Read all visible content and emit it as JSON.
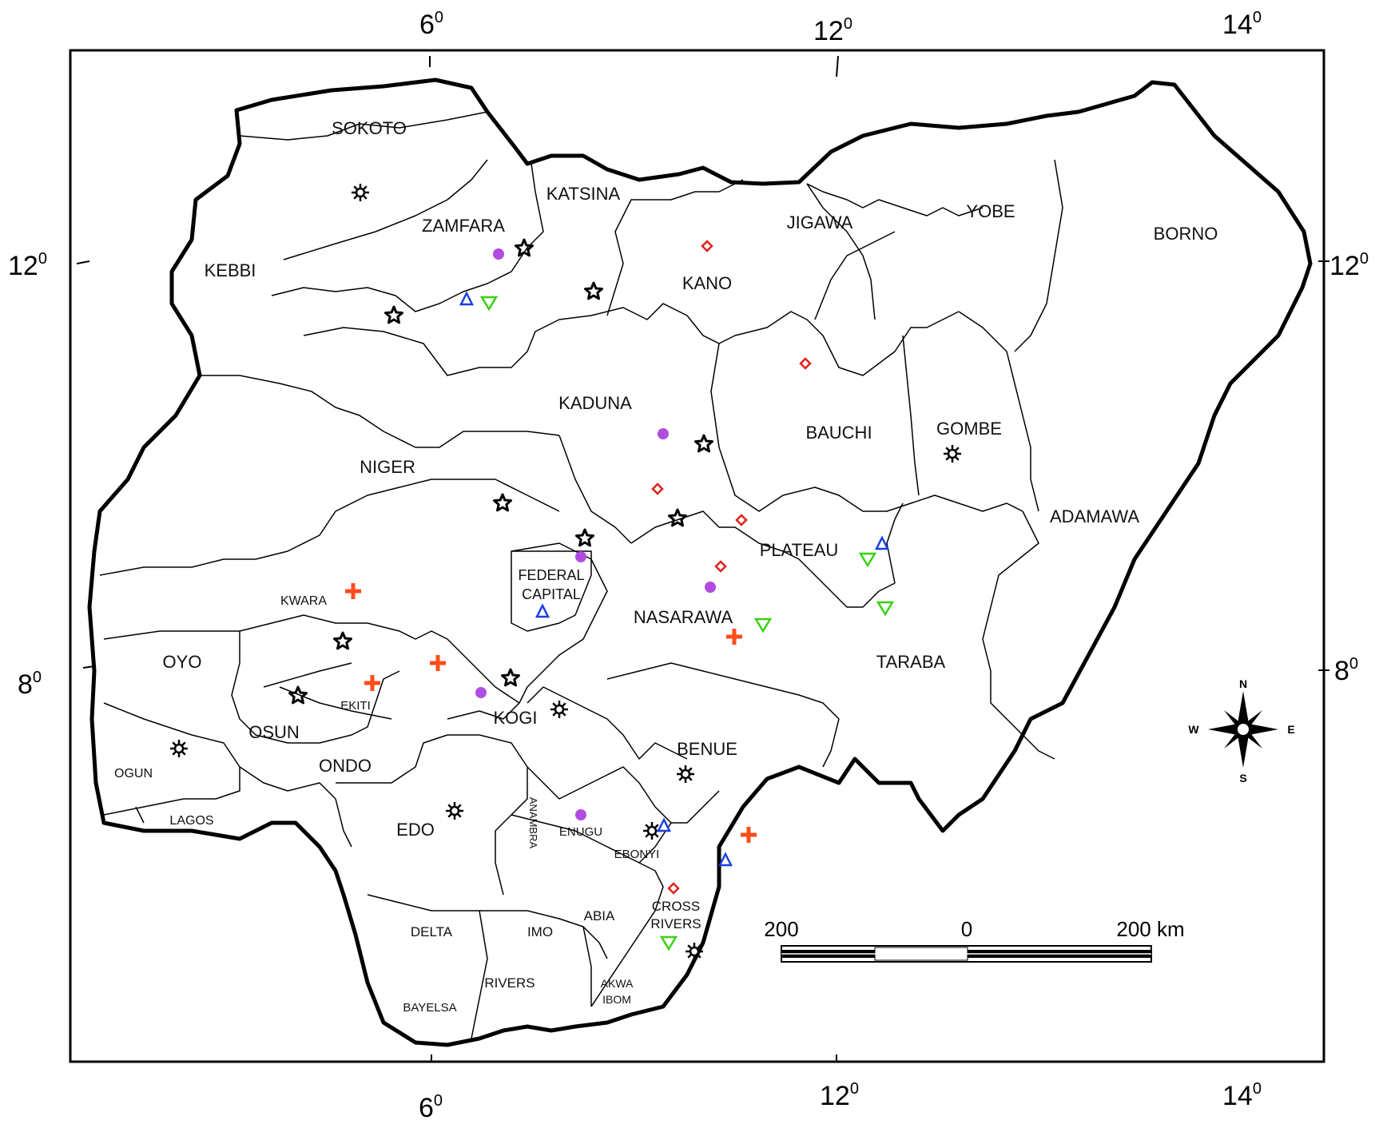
{
  "axes": {
    "top": [
      "6",
      "12",
      "14"
    ],
    "bottom": [
      "6",
      "12",
      "14"
    ],
    "left": [
      "12",
      "8"
    ],
    "right": [
      "12",
      "8"
    ],
    "degree_symbol": "0"
  },
  "states": {
    "sokoto": "SOKOTO",
    "katsina": "KATSINA",
    "zamfara": "ZAMFARA",
    "kebbi": "KEBBI",
    "jigawa": "JIGAWA",
    "yobe": "YOBE",
    "borno": "BORNO",
    "kano": "KANO",
    "kaduna": "KADUNA",
    "bauchi": "BAUCHI",
    "gombe": "GOMBE",
    "niger": "NIGER",
    "adamawa": "ADAMAWA",
    "plateau": "PLATEAU",
    "fct_1": "FEDERAL",
    "fct_2": "CAPITAL",
    "kwara": "KWARA",
    "nasarawa": "NASARAWA",
    "oyo": "OYO",
    "taraba": "TARABA",
    "ekiti": "EKITI",
    "kogi": "KOGI",
    "osun": "OSUN",
    "benue": "BENUE",
    "ogun": "OGUN",
    "ondo": "ONDO",
    "lagos": "LAGOS",
    "edo": "EDO",
    "anambra": "ANAMBRA",
    "enugu": "ENUGU",
    "ebonyi": "EBONYI",
    "cross_rivers_1": "CROSS",
    "cross_rivers_2": "RIVERS",
    "delta": "DELTA",
    "imo": "IMO",
    "abia": "ABIA",
    "rivers": "RIVERS",
    "akwa_ibom_1": "AKWA",
    "akwa_ibom_2": "IBOM",
    "bayelsa": "BAYELSA"
  },
  "scale_bar": {
    "left": "200",
    "mid": "0",
    "right": "200 km"
  },
  "compass": {
    "n": "N",
    "s": "S",
    "e": "E",
    "w": "W"
  },
  "marker_colors": {
    "star": "#000000",
    "sun": "#000000",
    "diamond": "#e0201b",
    "triangle_up": "#1a3fe0",
    "triangle_down": "#39d111",
    "dot": "#b04ce0",
    "cross": "#ff4d1a"
  }
}
